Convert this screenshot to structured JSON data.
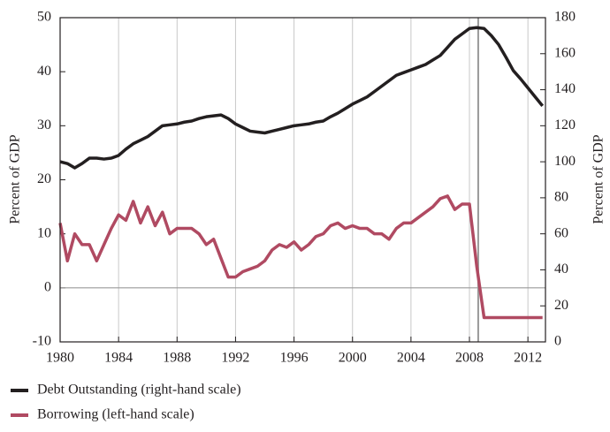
{
  "chart_data": {
    "type": "line",
    "y_label": "Percent of GDP",
    "y2_label": "Percent of GDP",
    "x": [
      1980,
      1980.5,
      1981,
      1981.5,
      1982,
      1982.5,
      1983,
      1983.5,
      1984,
      1984.5,
      1985,
      1985.5,
      1986,
      1986.5,
      1987,
      1987.5,
      1988,
      1988.5,
      1989,
      1989.5,
      1990,
      1990.5,
      1991,
      1991.5,
      1992,
      1992.5,
      1993,
      1993.5,
      1994,
      1994.5,
      1995,
      1995.5,
      1996,
      1996.5,
      1997,
      1997.5,
      1998,
      1998.5,
      1999,
      1999.5,
      2000,
      2000.5,
      2001,
      2001.5,
      2002,
      2002.5,
      2003,
      2003.5,
      2004,
      2004.5,
      2005,
      2005.5,
      2006,
      2006.5,
      2007,
      2007.5,
      2008,
      2008.5,
      2009,
      2009.5,
      2010,
      2010.5,
      2011,
      2011.5,
      2012,
      2012.5,
      2013
    ],
    "series": [
      {
        "name": "Debt Outstanding (right-hand scale)",
        "color": "#231f20",
        "axis": "y2",
        "values": [
          100,
          99,
          96.6,
          99,
          102,
          102,
          101.5,
          102,
          103.5,
          107,
          110,
          112,
          114,
          117,
          120,
          120.5,
          121,
          122,
          122.6,
          124,
          125,
          125.5,
          126,
          124,
          121,
          119,
          117,
          116.5,
          116,
          117,
          118,
          119,
          120,
          120.5,
          121,
          122,
          122.6,
          125,
          127,
          129.5,
          132,
          134,
          136,
          139,
          142,
          145,
          148,
          149.5,
          151,
          152.5,
          154,
          156.5,
          159,
          163.5,
          168,
          171,
          174,
          174.5,
          174,
          170,
          165,
          158,
          150.6,
          146,
          141,
          136,
          131
        ]
      },
      {
        "name": "Borrowing (left-hand scale)",
        "color": "#b04a62",
        "values": [
          12,
          5,
          10,
          8,
          8,
          5,
          8,
          11,
          13.5,
          12.5,
          16,
          12,
          15,
          11.5,
          14,
          10,
          11,
          11,
          11,
          10,
          8,
          9,
          5.5,
          2,
          2,
          3,
          3.5,
          4,
          5,
          7,
          8,
          7.5,
          8.5,
          7,
          8,
          9.5,
          10,
          11.5,
          12,
          11,
          11.5,
          11,
          11,
          10,
          10,
          9,
          11,
          12,
          12,
          13,
          14,
          15,
          16.5,
          17,
          14.5,
          15.5,
          15.5,
          4,
          -5.5,
          -5.5,
          -5.5,
          -5.5,
          -5.5,
          -5.5,
          -5.5,
          -5.5,
          -5.5
        ]
      }
    ],
    "xlim": [
      1980,
      2013.2
    ],
    "xticks": [
      1980,
      1984,
      1988,
      1992,
      1996,
      2000,
      2004,
      2008,
      2012
    ],
    "ylim": [
      -10,
      50
    ],
    "yticks": [
      -10,
      0,
      10,
      20,
      30,
      40,
      50
    ],
    "y2lim": [
      0,
      180
    ],
    "y2ticks": [
      0,
      20,
      40,
      60,
      80,
      100,
      120,
      140,
      160,
      180
    ],
    "vline": 2008.6,
    "grid": true
  }
}
